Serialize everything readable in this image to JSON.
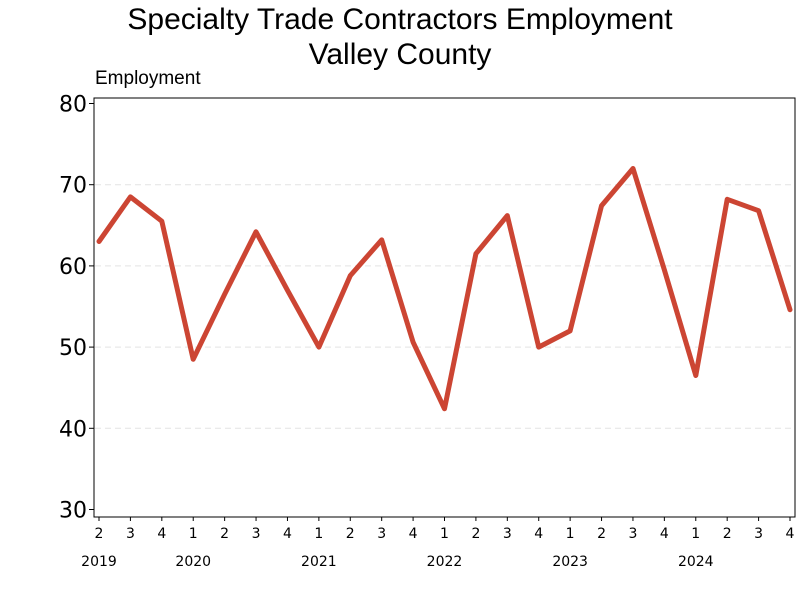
{
  "chart_data": {
    "type": "line",
    "title": [
      "Specialty Trade Contractors Employment",
      "Valley County"
    ],
    "ylabel": "Employment",
    "ylim": [
      30,
      80
    ],
    "yticks": [
      30,
      40,
      50,
      60,
      70,
      80
    ],
    "grid": "horizontal-dashed",
    "line_color": "#cc4533",
    "x": [
      {
        "q": "2",
        "year": "2019"
      },
      {
        "q": "3",
        "year": "2019"
      },
      {
        "q": "4",
        "year": "2019"
      },
      {
        "q": "1",
        "year": "2020"
      },
      {
        "q": "2",
        "year": "2020"
      },
      {
        "q": "3",
        "year": "2020"
      },
      {
        "q": "4",
        "year": "2020"
      },
      {
        "q": "1",
        "year": "2021"
      },
      {
        "q": "2",
        "year": "2021"
      },
      {
        "q": "3",
        "year": "2021"
      },
      {
        "q": "4",
        "year": "2021"
      },
      {
        "q": "1",
        "year": "2022"
      },
      {
        "q": "2",
        "year": "2022"
      },
      {
        "q": "3",
        "year": "2022"
      },
      {
        "q": "4",
        "year": "2022"
      },
      {
        "q": "1",
        "year": "2023"
      },
      {
        "q": "2",
        "year": "2023"
      },
      {
        "q": "3",
        "year": "2023"
      },
      {
        "q": "4",
        "year": "2023"
      },
      {
        "q": "1",
        "year": "2024"
      },
      {
        "q": "2",
        "year": "2024"
      },
      {
        "q": "3",
        "year": "2024"
      },
      {
        "q": "4",
        "year": "2024"
      }
    ],
    "year_labels": [
      "2019",
      "2020",
      "2021",
      "2022",
      "2023",
      "2024"
    ],
    "series": [
      {
        "values": [
          63,
          68.5,
          65.5,
          48.5,
          56.5,
          64.2,
          57,
          50,
          58.8,
          63.2,
          50.6,
          42.4,
          61.5,
          66.2,
          50,
          52,
          67.4,
          72,
          59.5,
          46.5,
          68.2,
          66.8,
          54.6
        ]
      }
    ]
  }
}
